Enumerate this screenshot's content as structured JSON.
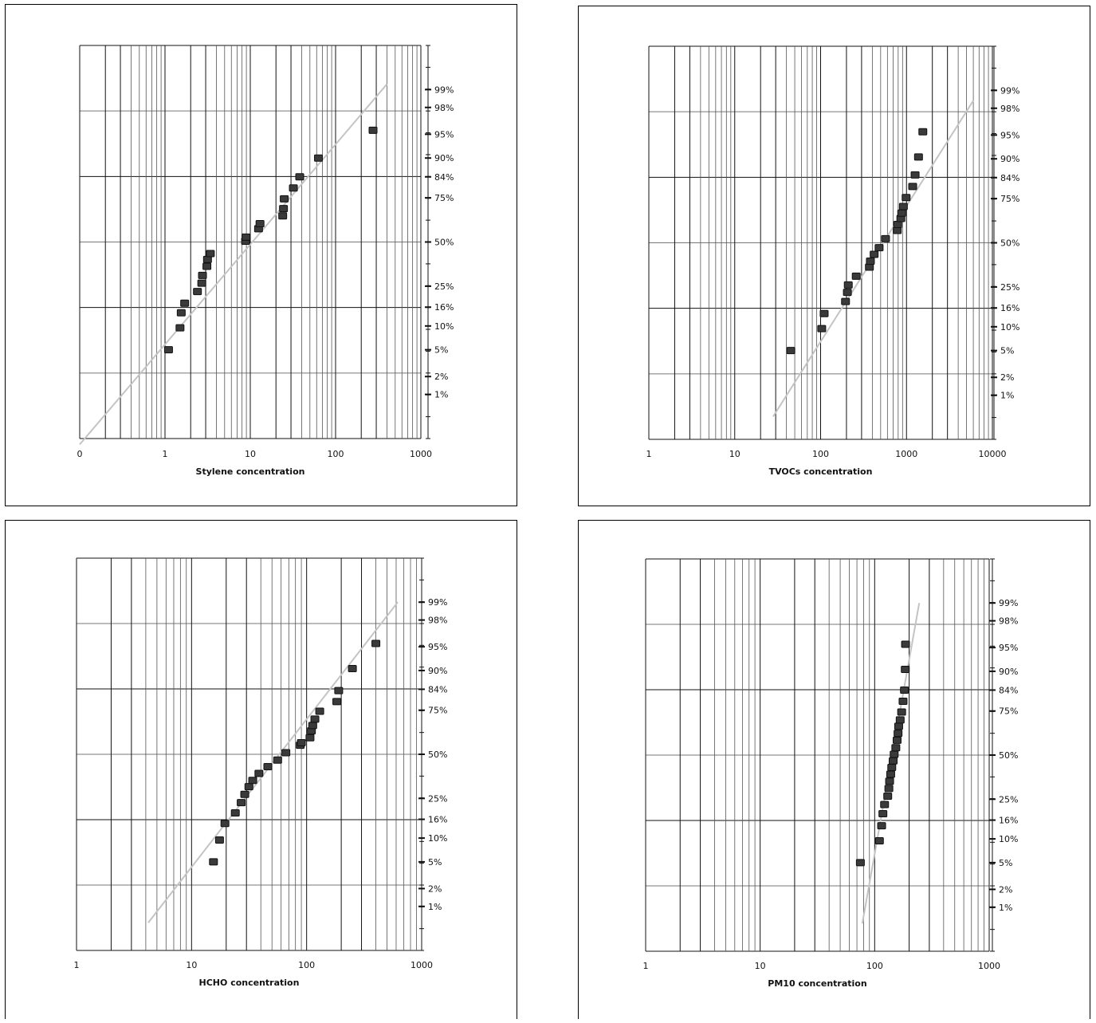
{
  "charts": [
    {
      "chart_data": {
        "type": "scatter",
        "xscale": "log",
        "yscale": "probability",
        "xlabel": "Stylene concentration",
        "xlim": [
          0.1,
          1000
        ],
        "xticks": [
          "0",
          "1",
          "10",
          "100",
          "1000"
        ],
        "yticks": [
          "99%",
          "98%",
          "95%",
          "90%",
          "84%",
          "75%",
          "50%",
          "25%",
          "16%",
          "10%",
          "5%",
          "2%",
          "1%"
        ],
        "fit_line": [
          [
            0.1,
            0.1
          ],
          [
            400,
            99.2
          ]
        ],
        "points": [
          [
            1.1,
            5
          ],
          [
            1.5,
            9.5
          ],
          [
            1.55,
            14
          ],
          [
            1.7,
            17.5
          ],
          [
            2.4,
            22.5
          ],
          [
            2.7,
            26.5
          ],
          [
            2.75,
            30.5
          ],
          [
            3.1,
            35.5
          ],
          [
            3.15,
            39.5
          ],
          [
            3.4,
            43
          ],
          [
            8.8,
            50.5
          ],
          [
            8.9,
            53
          ],
          [
            12.5,
            58
          ],
          [
            13,
            61
          ],
          [
            24,
            65.5
          ],
          [
            24.5,
            69.5
          ],
          [
            25,
            74.5
          ],
          [
            32,
            79.5
          ],
          [
            38,
            84
          ],
          [
            63,
            90
          ],
          [
            275,
            95.6
          ]
        ]
      }
    },
    {
      "chart_data": {
        "type": "scatter",
        "xscale": "log",
        "yscale": "probability",
        "xlabel": "TVOCs concentration",
        "xlim": [
          1,
          10000
        ],
        "xticks": [
          "1",
          "10",
          "100",
          "1000",
          "10000"
        ],
        "yticks": [
          "99%",
          "98%",
          "95%",
          "90%",
          "84%",
          "75%",
          "50%",
          "25%",
          "16%",
          "10%",
          "5%",
          "2%",
          "1%"
        ],
        "fit_line": [
          [
            28,
            0.4
          ],
          [
            6000,
            98.5
          ]
        ],
        "points": [
          [
            45,
            5
          ],
          [
            103,
            9.5
          ],
          [
            110,
            14
          ],
          [
            195,
            18.5
          ],
          [
            205,
            22.5
          ],
          [
            210,
            26
          ],
          [
            260,
            30.5
          ],
          [
            370,
            35.5
          ],
          [
            380,
            39
          ],
          [
            420,
            43
          ],
          [
            480,
            47
          ],
          [
            570,
            52.5
          ],
          [
            780,
            57.5
          ],
          [
            790,
            61
          ],
          [
            860,
            64.5
          ],
          [
            880,
            67.5
          ],
          [
            920,
            71
          ],
          [
            990,
            75.5
          ],
          [
            1180,
            80.5
          ],
          [
            1260,
            85
          ],
          [
            1380,
            90.5
          ],
          [
            1550,
            95.5
          ]
        ]
      }
    },
    {
      "chart_data": {
        "type": "scatter",
        "xscale": "log",
        "yscale": "probability",
        "xlabel": "HCHO concentration",
        "xlim": [
          1,
          1000
        ],
        "xticks": [
          "1",
          "10",
          "100",
          "1000"
        ],
        "yticks": [
          "99%",
          "98%",
          "95%",
          "90%",
          "84%",
          "75%",
          "50%",
          "25%",
          "16%",
          "10%",
          "5%",
          "2%",
          "1%"
        ],
        "fit_line": [
          [
            4.2,
            0.5
          ],
          [
            620,
            99
          ]
        ],
        "points": [
          [
            15.5,
            5
          ],
          [
            17.5,
            9.5
          ],
          [
            19.5,
            14.5
          ],
          [
            24,
            18.5
          ],
          [
            27,
            23
          ],
          [
            29,
            27
          ],
          [
            31.5,
            31
          ],
          [
            34,
            34.5
          ],
          [
            38.5,
            38.5
          ],
          [
            46,
            42.5
          ],
          [
            56,
            46.5
          ],
          [
            66,
            51
          ],
          [
            88,
            55.5
          ],
          [
            90,
            57
          ],
          [
            107,
            60
          ],
          [
            110,
            64
          ],
          [
            113,
            67
          ],
          [
            118,
            70.5
          ],
          [
            130,
            74.5
          ],
          [
            183,
            79
          ],
          [
            190,
            83.5
          ],
          [
            250,
            90.5
          ],
          [
            400,
            95.5
          ]
        ]
      }
    },
    {
      "chart_data": {
        "type": "scatter",
        "xscale": "log",
        "yscale": "probability",
        "xlabel": "PM10 concentration",
        "xlim": [
          1,
          1000
        ],
        "xticks": [
          "1",
          "10",
          "100",
          "1000"
        ],
        "yticks": [
          "99%",
          "98%",
          "95%",
          "90%",
          "84%",
          "75%",
          "50%",
          "25%",
          "16%",
          "10%",
          "5%",
          "2%",
          "1%"
        ],
        "fit_line": [
          [
            78,
            0.5
          ],
          [
            245,
            99
          ]
        ],
        "points": [
          [
            75,
            5
          ],
          [
            110,
            9.5
          ],
          [
            115,
            14
          ],
          [
            118,
            18.5
          ],
          [
            122,
            22.5
          ],
          [
            130,
            26.5
          ],
          [
            133,
            30.5
          ],
          [
            135,
            34.5
          ],
          [
            138,
            38.5
          ],
          [
            141,
            42.5
          ],
          [
            145,
            46.5
          ],
          [
            148,
            50.5
          ],
          [
            153,
            54.5
          ],
          [
            157,
            59
          ],
          [
            160,
            63
          ],
          [
            162,
            67
          ],
          [
            167,
            70.5
          ],
          [
            172,
            74.5
          ],
          [
            177,
            79.5
          ],
          [
            182,
            84
          ],
          [
            185,
            90.5
          ],
          [
            186,
            95.5
          ]
        ]
      }
    }
  ]
}
